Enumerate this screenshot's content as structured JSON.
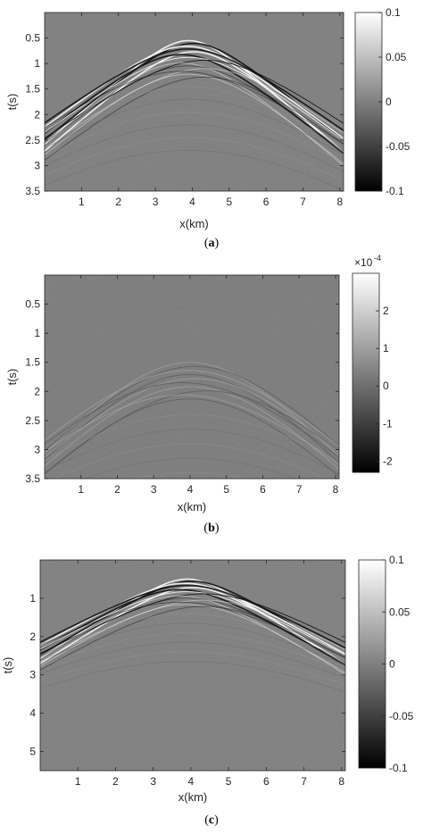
{
  "chart_data": [
    {
      "type": "heatmap",
      "title": "",
      "caption": "(a)",
      "caption_letter": "a",
      "xlabel": "x(km)",
      "ylabel": "t(s)",
      "xlim": [
        0,
        8.1
      ],
      "ylim": [
        0,
        3.5
      ],
      "y_reversed": true,
      "xticks": [
        1,
        2,
        3,
        4,
        5,
        6,
        7,
        8
      ],
      "yticks": [
        0.5,
        1,
        1.5,
        2,
        2.5,
        3,
        3.5
      ],
      "colormap": "gray",
      "clim": [
        -0.1,
        0.1
      ],
      "colorbar_ticks": [
        0.1,
        0.05,
        0,
        -0.05,
        -0.1
      ],
      "colorbar_exponent": "",
      "wavefront_apex": {
        "x": 3.9,
        "t": 0.55
      },
      "background_color": "#7f7f7f"
    },
    {
      "type": "heatmap",
      "title": "",
      "caption": "(b)",
      "caption_letter": "b",
      "xlabel": "x(km)",
      "ylabel": "t(s)",
      "xlim": [
        0,
        8.1
      ],
      "ylim": [
        0,
        3.5
      ],
      "y_reversed": true,
      "xticks": [
        1,
        2,
        3,
        4,
        5,
        6,
        7,
        8
      ],
      "yticks": [
        0.5,
        1,
        1.5,
        2,
        2.5,
        3,
        3.5
      ],
      "colormap": "gray",
      "clim": [
        -2.3,
        3
      ],
      "colorbar_ticks": [
        2,
        1,
        0,
        -1,
        -2
      ],
      "colorbar_exponent": "-4",
      "wavefront_apex": {
        "x": 4.0,
        "t": 1.5
      },
      "background_color": "#7c7c7c"
    },
    {
      "type": "heatmap",
      "title": "",
      "caption": "(c)",
      "caption_letter": "c",
      "xlabel": "x(km)",
      "ylabel": "t(s)",
      "xlim": [
        0,
        8.1
      ],
      "ylim": [
        0,
        5.5
      ],
      "y_reversed": true,
      "xticks": [
        1,
        2,
        3,
        4,
        5,
        6,
        7,
        8
      ],
      "yticks": [
        1,
        2,
        3,
        4,
        5
      ],
      "colormap": "gray",
      "clim": [
        -0.1,
        0.1
      ],
      "colorbar_ticks": [
        0.1,
        0.05,
        0,
        -0.05,
        -0.1
      ],
      "colorbar_exponent": "",
      "wavefront_apex": {
        "x": 3.9,
        "t": 0.5
      },
      "background_color": "#808080"
    }
  ]
}
